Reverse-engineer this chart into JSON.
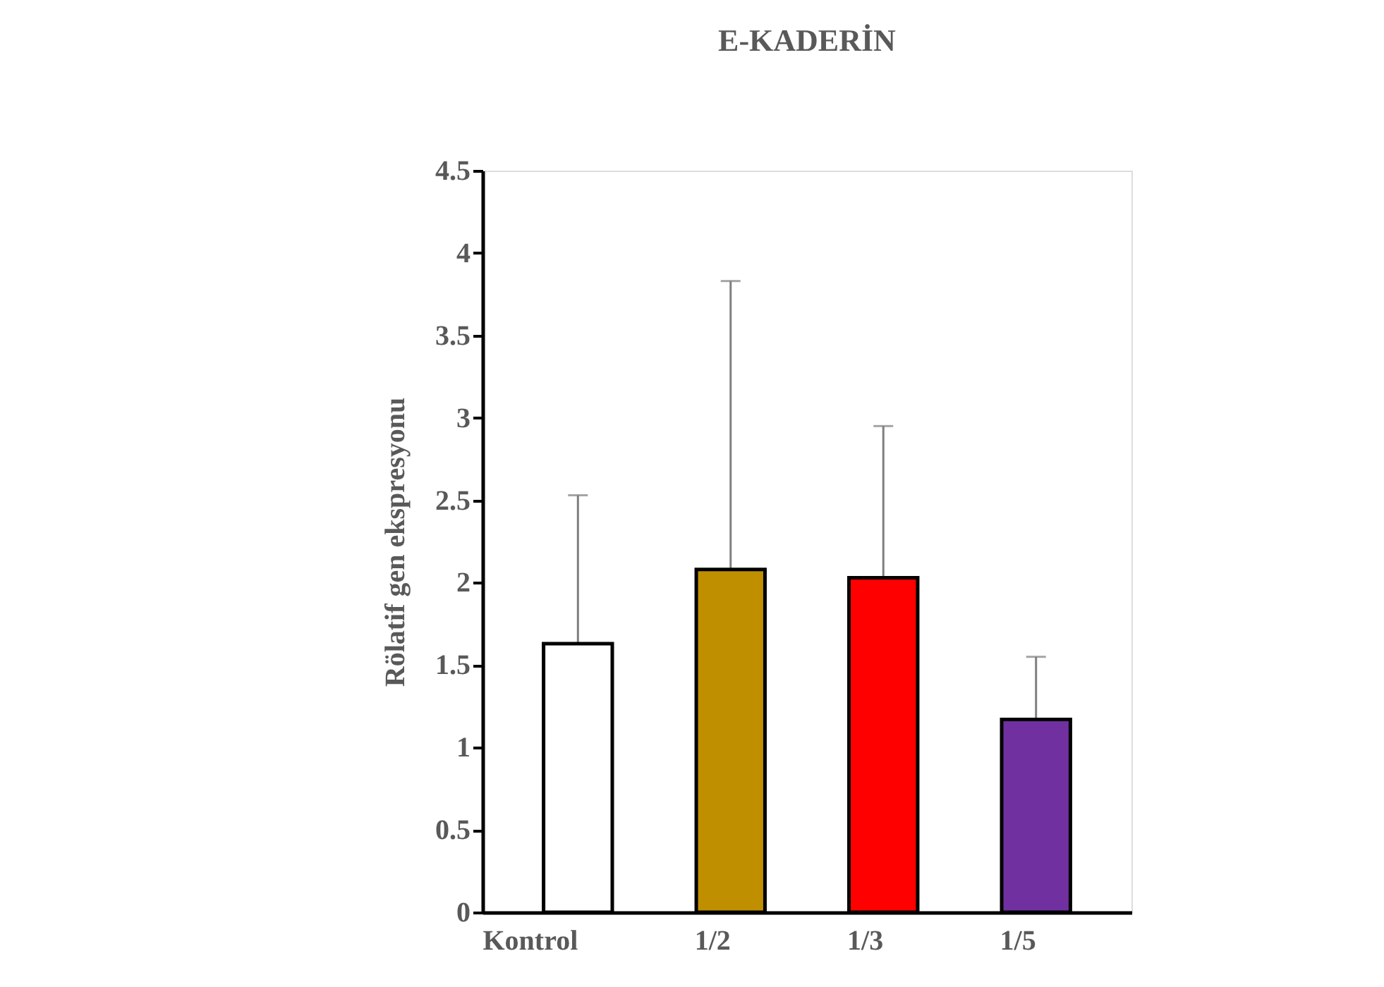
{
  "chart_data": {
    "type": "bar",
    "title": "E-KADERİN",
    "ylabel": "Rölatif gen ekspresyonu",
    "categories": [
      "Kontrol",
      "1/2",
      "1/3",
      "1/5"
    ],
    "values": [
      1.63,
      2.08,
      2.03,
      1.17
    ],
    "colors": [
      "#ffffff",
      "#bf8f00",
      "#ff0000",
      "#7030a0"
    ],
    "errors": [
      [
        1.63,
        2.53
      ],
      [
        2.08,
        3.83
      ],
      [
        2.03,
        2.95
      ],
      [
        1.17,
        1.55
      ]
    ],
    "ylim": [
      0,
      4.5
    ],
    "yticks": [
      0,
      0.5,
      1,
      1.5,
      2,
      2.5,
      3,
      3.5,
      4,
      4.5
    ],
    "grid": false
  }
}
